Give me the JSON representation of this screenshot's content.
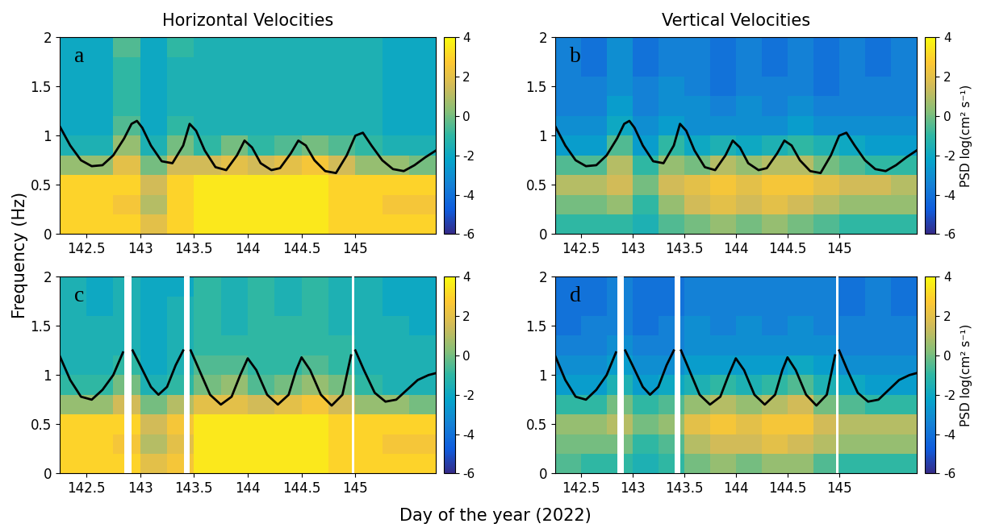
{
  "xlabel": "Day of the year (2022)",
  "ylabel": "Frequency (Hz)",
  "chart_data": [
    {
      "type": "heatmap",
      "label": "a",
      "title": "Horizontal Velocities",
      "xlim": [
        142.25,
        145.75
      ],
      "ylim": [
        0,
        2
      ],
      "xticks": [
        142.5,
        143,
        143.5,
        144,
        144.5,
        145
      ],
      "yticks": [
        0,
        0.5,
        1,
        1.5,
        2
      ],
      "x_edges": [
        142.25,
        142.5,
        142.75,
        143,
        143.25,
        143.5,
        143.75,
        144,
        144.25,
        144.5,
        144.75,
        145,
        145.25,
        145.5,
        145.75
      ],
      "y_edges": [
        0,
        0.2,
        0.4,
        0.6,
        0.8,
        1,
        1.2,
        1.4,
        1.6,
        1.8,
        2
      ],
      "cells": [
        [
          3,
          3,
          3,
          2,
          3,
          3.5,
          3.5,
          3.5,
          3.5,
          3.5,
          3,
          3,
          3,
          3
        ],
        [
          3,
          3,
          2.5,
          1,
          3,
          3.5,
          3.5,
          3.5,
          3.5,
          3.5,
          3,
          3,
          2.5,
          2.5
        ],
        [
          3,
          3,
          3,
          1.5,
          3,
          3.5,
          3.5,
          3.5,
          3.5,
          3.5,
          3,
          3,
          3,
          3
        ],
        [
          0.5,
          0.5,
          2,
          0,
          1.5,
          1.5,
          2,
          1.5,
          2,
          2.5,
          1.5,
          0.5,
          0.5,
          0
        ],
        [
          -1.5,
          -1.5,
          0.5,
          -1.5,
          0,
          -1,
          0,
          -1,
          -0.5,
          0,
          -0.5,
          -1,
          -1.5,
          -1.5
        ],
        [
          -2,
          -2,
          -0.5,
          -2,
          -1,
          -1.5,
          -1.5,
          -1.5,
          -1.5,
          -1.5,
          -1.5,
          -1.5,
          -2,
          -2
        ],
        [
          -2,
          -2,
          -1,
          -2,
          -1.5,
          -1.5,
          -1.5,
          -1.5,
          -1.5,
          -1.5,
          -1.5,
          -1.5,
          -2,
          -2
        ],
        [
          -2,
          -2,
          -1,
          -2,
          -1.5,
          -1.5,
          -1.5,
          -1.5,
          -1.5,
          -1.5,
          -1.5,
          -1.5,
          -2,
          -2
        ],
        [
          -2,
          -2,
          -1,
          -2,
          -1.5,
          -1.5,
          -1.5,
          -1.5,
          -1.5,
          -1.5,
          -1.5,
          -1.5,
          -2,
          -2
        ],
        [
          -2,
          -2,
          -0.5,
          -2,
          -1,
          -1.5,
          -1.5,
          -1.5,
          -1.5,
          -1.5,
          -1.5,
          -1.5,
          -2,
          -2
        ]
      ],
      "clim": [
        -6,
        4
      ],
      "cticks": [
        -6,
        -4,
        -2,
        0,
        2,
        4
      ],
      "gaps": [],
      "curve": {
        "color": "#000000",
        "x": [
          142.25,
          142.35,
          142.45,
          142.55,
          142.65,
          142.75,
          142.85,
          142.92,
          142.97,
          143.02,
          143.1,
          143.2,
          143.3,
          143.4,
          143.46,
          143.52,
          143.6,
          143.7,
          143.8,
          143.9,
          143.97,
          144.04,
          144.12,
          144.22,
          144.3,
          144.4,
          144.47,
          144.54,
          144.62,
          144.72,
          144.82,
          144.92,
          145.0,
          145.07,
          145.15,
          145.25,
          145.35,
          145.45,
          145.55,
          145.65,
          145.75
        ],
        "y": [
          1.1,
          0.9,
          0.75,
          0.69,
          0.7,
          0.8,
          0.97,
          1.12,
          1.15,
          1.08,
          0.9,
          0.74,
          0.72,
          0.9,
          1.12,
          1.05,
          0.85,
          0.68,
          0.65,
          0.8,
          0.95,
          0.88,
          0.72,
          0.65,
          0.67,
          0.82,
          0.95,
          0.9,
          0.75,
          0.64,
          0.62,
          0.8,
          1.0,
          1.03,
          0.9,
          0.75,
          0.66,
          0.64,
          0.7,
          0.78,
          0.85
        ]
      }
    },
    {
      "type": "heatmap",
      "label": "b",
      "title": "Vertical Velocities",
      "xlim": [
        142.25,
        145.75
      ],
      "ylim": [
        0,
        2
      ],
      "xticks": [
        142.5,
        143,
        143.5,
        144,
        144.5,
        145
      ],
      "yticks": [
        0,
        0.5,
        1,
        1.5,
        2
      ],
      "x_edges": [
        142.25,
        142.5,
        142.75,
        143,
        143.25,
        143.5,
        143.75,
        144,
        144.25,
        144.5,
        144.75,
        145,
        145.25,
        145.5,
        145.75
      ],
      "y_edges": [
        0,
        0.2,
        0.4,
        0.6,
        0.8,
        1,
        1.2,
        1.4,
        1.6,
        1.8,
        2
      ],
      "cells": [
        [
          -1,
          -1,
          -1,
          -1.5,
          -0.5,
          0,
          0.5,
          0,
          0.5,
          0,
          -0.5,
          -1,
          -1,
          -1
        ],
        [
          0,
          0,
          0.5,
          -1,
          0.5,
          1.5,
          2,
          1.5,
          2,
          1.5,
          1,
          0.5,
          0.5,
          0.5
        ],
        [
          1,
          1,
          1.5,
          0,
          1.5,
          2,
          2.5,
          2,
          2.5,
          2.5,
          2,
          1.5,
          1.5,
          1
        ],
        [
          -0.5,
          -0.5,
          1,
          -1,
          0.5,
          0,
          1,
          0.5,
          1,
          1,
          0,
          -0.5,
          -1,
          -1
        ],
        [
          -2.5,
          -2.5,
          -0.5,
          -2.5,
          -1,
          -2,
          -1.5,
          -2,
          -1.5,
          -1,
          -1.5,
          -2,
          -2.5,
          -2.5
        ],
        [
          -3,
          -3,
          -2,
          -3,
          -2.5,
          -3,
          -3,
          -3,
          -3,
          -2.5,
          -3,
          -3,
          -3,
          -3
        ],
        [
          -3.5,
          -3.5,
          -2.5,
          -3.5,
          -3,
          -3,
          -3.5,
          -3,
          -3.5,
          -3,
          -3.5,
          -3.5,
          -3.5,
          -3.5
        ],
        [
          -3.5,
          -3.5,
          -3,
          -3.5,
          -3,
          -3.5,
          -4,
          -3.5,
          -3.5,
          -3.5,
          -4,
          -3.5,
          -3.5,
          -3.5
        ],
        [
          -3.5,
          -4,
          -3,
          -4,
          -3.5,
          -3.5,
          -4,
          -3.5,
          -4,
          -3.5,
          -4,
          -3.5,
          -4,
          -3.5
        ],
        [
          -3.5,
          -4,
          -3,
          -4,
          -3.5,
          -3.5,
          -4,
          -3.5,
          -4,
          -3.5,
          -4,
          -3.5,
          -4,
          -3.5
        ]
      ],
      "clim": [
        -6,
        4
      ],
      "cticks": [
        -6,
        -4,
        -2,
        0,
        2,
        4
      ],
      "colorbar_label": "PSD log(cm² s⁻¹)",
      "gaps": [],
      "curve": {
        "color": "#000000",
        "x": [
          142.25,
          142.35,
          142.45,
          142.55,
          142.65,
          142.75,
          142.85,
          142.92,
          142.97,
          143.02,
          143.1,
          143.2,
          143.3,
          143.4,
          143.46,
          143.52,
          143.6,
          143.7,
          143.8,
          143.9,
          143.97,
          144.04,
          144.12,
          144.22,
          144.3,
          144.4,
          144.47,
          144.54,
          144.62,
          144.72,
          144.82,
          144.92,
          145.0,
          145.07,
          145.15,
          145.25,
          145.35,
          145.45,
          145.55,
          145.65,
          145.75
        ],
        "y": [
          1.1,
          0.9,
          0.75,
          0.69,
          0.7,
          0.8,
          0.97,
          1.12,
          1.15,
          1.08,
          0.9,
          0.74,
          0.72,
          0.9,
          1.12,
          1.05,
          0.85,
          0.68,
          0.65,
          0.8,
          0.95,
          0.88,
          0.72,
          0.65,
          0.67,
          0.82,
          0.95,
          0.9,
          0.75,
          0.64,
          0.62,
          0.8,
          1.0,
          1.03,
          0.9,
          0.75,
          0.66,
          0.64,
          0.7,
          0.78,
          0.85
        ]
      }
    },
    {
      "type": "heatmap",
      "label": "c",
      "xlim": [
        142.25,
        145.75
      ],
      "ylim": [
        0,
        2
      ],
      "xticks": [
        142.5,
        143,
        143.5,
        144,
        144.5,
        145
      ],
      "yticks": [
        0,
        0.5,
        1,
        1.5,
        2
      ],
      "x_edges": [
        142.25,
        142.5,
        142.75,
        143,
        143.25,
        143.5,
        143.75,
        144,
        144.25,
        144.5,
        144.75,
        145,
        145.25,
        145.5,
        145.75
      ],
      "y_edges": [
        0,
        0.2,
        0.4,
        0.6,
        0.8,
        1,
        1.2,
        1.4,
        1.6,
        1.8,
        2
      ],
      "cells": [
        [
          3,
          3,
          3,
          2,
          2.5,
          3.5,
          3.5,
          3.5,
          3.5,
          3.5,
          3,
          3,
          3,
          3
        ],
        [
          3,
          3,
          2.5,
          1,
          2,
          3.5,
          3.5,
          3.5,
          3.5,
          3.5,
          3,
          3,
          2.5,
          2.5
        ],
        [
          3,
          3,
          3,
          1.5,
          2.5,
          3.5,
          3.5,
          3.5,
          3.5,
          3.5,
          3,
          3,
          3,
          3
        ],
        [
          0.5,
          0.5,
          1.5,
          0,
          1,
          2,
          2,
          1.5,
          2,
          2.5,
          1.5,
          0.5,
          0.5,
          0
        ],
        [
          -1,
          -1,
          0,
          -1.5,
          -1,
          0,
          0.5,
          -0.5,
          0,
          0.5,
          0,
          -1,
          -1.5,
          -1.5
        ],
        [
          -1.5,
          -1.5,
          -1,
          -2,
          -1.5,
          -0.5,
          -0.5,
          -1,
          -1,
          -0.5,
          -1,
          -1.5,
          -1.5,
          -1.5
        ],
        [
          -1.5,
          -1.5,
          -1.5,
          -2,
          -1.5,
          -1,
          -1,
          -1,
          -1,
          -1,
          -1,
          -1.5,
          -1.5,
          -1.5
        ],
        [
          -1.5,
          -1.5,
          -1.5,
          -2,
          -1.5,
          -1,
          -1.5,
          -1,
          -1,
          -1,
          -1.5,
          -1.5,
          -1.5,
          -2
        ],
        [
          -1.5,
          -2,
          -1.5,
          -2,
          -1.5,
          -1,
          -1.5,
          -1,
          -1.5,
          -1,
          -1.5,
          -1.5,
          -2,
          -2
        ],
        [
          -1.5,
          -2,
          -1.5,
          -2,
          -2,
          -1,
          -1.5,
          -1,
          -1.5,
          -1,
          -1.5,
          -1.5,
          -2,
          -2
        ]
      ],
      "clim": [
        -6,
        4
      ],
      "cticks": [
        -6,
        -4,
        -2,
        0,
        2,
        4
      ],
      "gaps": [
        [
          142.85,
          142.92
        ],
        [
          143.41,
          143.46
        ],
        [
          144.97,
          144.99
        ]
      ],
      "curve": {
        "color": "#000000",
        "x": [
          142.25,
          142.35,
          142.45,
          142.55,
          142.65,
          142.75,
          142.84,
          142.88,
          142.93,
          143.0,
          143.1,
          143.17,
          143.25,
          143.33,
          143.4,
          143.44,
          143.47,
          143.55,
          143.65,
          143.75,
          143.85,
          143.93,
          144.0,
          144.08,
          144.18,
          144.28,
          144.38,
          144.45,
          144.5,
          144.58,
          144.68,
          144.78,
          144.88,
          144.96,
          144.98,
          145.0,
          145.08,
          145.18,
          145.28,
          145.38,
          145.48,
          145.58,
          145.68,
          145.75
        ],
        "y": [
          1.2,
          0.95,
          0.78,
          0.75,
          0.85,
          1.0,
          1.23,
          null,
          1.25,
          1.1,
          0.88,
          0.8,
          0.88,
          1.1,
          1.25,
          null,
          1.25,
          1.05,
          0.8,
          0.7,
          0.78,
          1.0,
          1.17,
          1.05,
          0.8,
          0.7,
          0.8,
          1.05,
          1.18,
          1.05,
          0.8,
          0.69,
          0.8,
          1.2,
          null,
          1.25,
          1.05,
          0.82,
          0.73,
          0.75,
          0.85,
          0.95,
          1.0,
          1.02
        ]
      }
    },
    {
      "type": "heatmap",
      "label": "d",
      "xlim": [
        142.25,
        145.75
      ],
      "ylim": [
        0,
        2
      ],
      "xticks": [
        142.5,
        143,
        143.5,
        144,
        144.5,
        145
      ],
      "yticks": [
        0,
        0.5,
        1,
        1.5,
        2
      ],
      "x_edges": [
        142.25,
        142.5,
        142.75,
        143,
        143.25,
        143.5,
        143.75,
        144,
        144.25,
        144.5,
        144.75,
        145,
        145.25,
        145.5,
        145.75
      ],
      "y_edges": [
        0,
        0.2,
        0.4,
        0.6,
        0.8,
        1,
        1.2,
        1.4,
        1.6,
        1.8,
        2
      ],
      "cells": [
        [
          -0.5,
          -1,
          -1,
          -1.5,
          -1,
          0,
          0.5,
          0,
          0.5,
          0.5,
          -0.5,
          -1,
          -1,
          -1
        ],
        [
          0,
          0,
          0,
          -1,
          -0.5,
          1,
          1.5,
          1.5,
          2,
          1.5,
          1,
          0.5,
          0.5,
          0.5
        ],
        [
          0.5,
          0.5,
          1,
          0,
          0.5,
          2,
          2.5,
          2,
          2.5,
          2.5,
          1.5,
          1,
          1,
          1
        ],
        [
          -1,
          -1,
          0,
          -1,
          -0.5,
          0.5,
          1,
          0.5,
          1,
          1.5,
          0,
          -0.5,
          -1,
          -1
        ],
        [
          -2.5,
          -2.5,
          -1.5,
          -2.5,
          -2,
          -1.5,
          -1,
          -1.5,
          -1,
          -0.5,
          -1.5,
          -2,
          -2.5,
          -2.5
        ],
        [
          -3,
          -3,
          -2.5,
          -3,
          -3,
          -2.5,
          -2.5,
          -2.5,
          -2.5,
          -2,
          -2.5,
          -3,
          -3,
          -3
        ],
        [
          -3.5,
          -3.5,
          -3,
          -3.5,
          -3.5,
          -3,
          -3,
          -3,
          -3,
          -3,
          -3,
          -3.5,
          -3.5,
          -3.5
        ],
        [
          -4,
          -3.5,
          -3.5,
          -4,
          -3.5,
          -3,
          -3.5,
          -3,
          -3.5,
          -3,
          -3.5,
          -3.5,
          -3.5,
          -3.5
        ],
        [
          -4,
          -4,
          -3.5,
          -4,
          -4,
          -3.5,
          -3.5,
          -3.5,
          -3.5,
          -3.5,
          -3.5,
          -4,
          -3.5,
          -4
        ],
        [
          -4,
          -4,
          -3.5,
          -4,
          -4,
          -3.5,
          -3.5,
          -3.5,
          -3.5,
          -3.5,
          -3.5,
          -4,
          -3.5,
          -4
        ]
      ],
      "clim": [
        -6,
        4
      ],
      "cticks": [
        -6,
        -4,
        -2,
        0,
        2,
        4
      ],
      "colorbar_label": "PSD log(cm² s⁻¹)",
      "gaps": [
        [
          142.85,
          142.92
        ],
        [
          143.41,
          143.46
        ],
        [
          144.97,
          144.99
        ]
      ],
      "curve": {
        "color": "#000000",
        "x": [
          142.25,
          142.35,
          142.45,
          142.55,
          142.65,
          142.75,
          142.84,
          142.88,
          142.93,
          143.0,
          143.1,
          143.17,
          143.25,
          143.33,
          143.4,
          143.44,
          143.47,
          143.55,
          143.65,
          143.75,
          143.85,
          143.93,
          144.0,
          144.08,
          144.18,
          144.28,
          144.38,
          144.45,
          144.5,
          144.58,
          144.68,
          144.78,
          144.88,
          144.96,
          144.98,
          145.0,
          145.08,
          145.18,
          145.28,
          145.38,
          145.48,
          145.58,
          145.68,
          145.75
        ],
        "y": [
          1.2,
          0.95,
          0.78,
          0.75,
          0.85,
          1.0,
          1.23,
          null,
          1.25,
          1.1,
          0.88,
          0.8,
          0.88,
          1.1,
          1.25,
          null,
          1.25,
          1.05,
          0.8,
          0.7,
          0.78,
          1.0,
          1.17,
          1.05,
          0.8,
          0.7,
          0.8,
          1.05,
          1.18,
          1.05,
          0.8,
          0.69,
          0.8,
          1.2,
          null,
          1.25,
          1.05,
          0.82,
          0.73,
          0.75,
          0.85,
          0.95,
          1.0,
          1.02
        ]
      }
    }
  ]
}
